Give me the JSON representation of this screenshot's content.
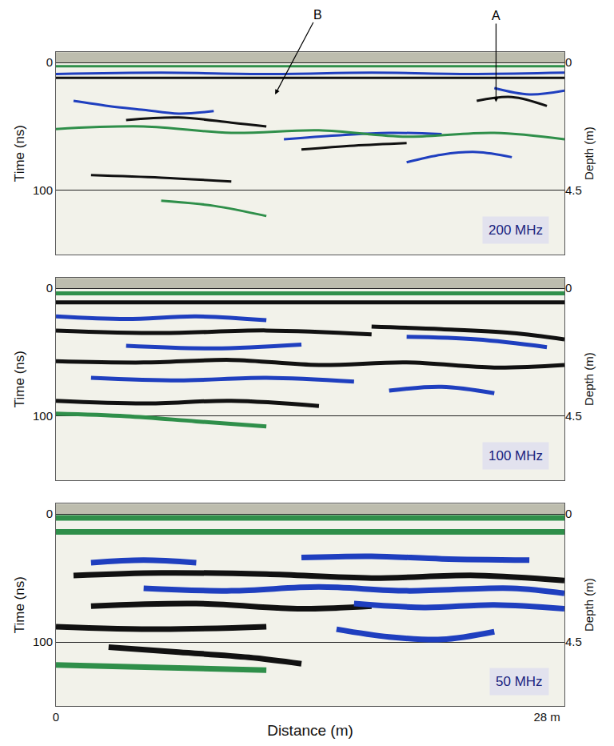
{
  "chart_data": [
    {
      "type": "line",
      "y_label": "Time (ns)",
      "y2_label": "Depth (m)",
      "xlim": [
        0,
        29
      ],
      "xticks": [],
      "ylim": [
        150,
        -8
      ],
      "yticks": [
        0,
        100
      ],
      "y2lim": [
        6.75,
        -0.36
      ],
      "y2ticks": [
        0,
        4.5
      ],
      "grid": true,
      "tick_labels": "y",
      "annotations": [
        {
          "text": "200 MHz"
        },
        {
          "text": "B",
          "x": 12.5,
          "y": 25
        },
        {
          "text": "A",
          "x": 25.1,
          "y": 31
        }
      ],
      "series": [
        {
          "color": "#2f8f4a",
          "x": [
            0,
            29
          ],
          "values": [
            3,
            3
          ]
        },
        {
          "color": "#1f3fbf",
          "x": [
            0,
            6,
            12,
            18,
            24,
            29
          ],
          "values": [
            9,
            8,
            9,
            8,
            9,
            8
          ]
        },
        {
          "color": "#111111",
          "x": [
            0,
            29
          ],
          "values": [
            12,
            12
          ]
        },
        {
          "color": "#1f3fbf",
          "x": [
            1,
            3,
            5,
            7,
            9
          ],
          "values": [
            30,
            34,
            37,
            40,
            38
          ]
        },
        {
          "color": "#111111",
          "x": [
            4,
            7,
            10,
            12
          ],
          "values": [
            45,
            43,
            47,
            50
          ]
        },
        {
          "color": "#1f3fbf",
          "x": [
            13,
            16,
            19,
            22
          ],
          "values": [
            60,
            57,
            55,
            56
          ]
        },
        {
          "color": "#111111",
          "x": [
            14,
            17,
            20
          ],
          "values": [
            68,
            65,
            63
          ]
        },
        {
          "color": "#1f3fbf",
          "x": [
            20,
            22,
            24,
            26
          ],
          "values": [
            78,
            72,
            70,
            74
          ]
        },
        {
          "color": "#111111",
          "x": [
            24,
            26,
            28
          ],
          "values": [
            30,
            27,
            34
          ]
        },
        {
          "color": "#1f3fbf",
          "x": [
            25,
            27,
            29
          ],
          "values": [
            20,
            25,
            22
          ]
        },
        {
          "color": "#2f8f4a",
          "x": [
            0,
            5,
            10,
            15,
            20,
            25,
            29
          ],
          "values": [
            52,
            50,
            55,
            53,
            58,
            55,
            60
          ]
        },
        {
          "color": "#111111",
          "x": [
            2,
            6,
            10
          ],
          "values": [
            88,
            90,
            93
          ]
        },
        {
          "color": "#2f8f4a",
          "x": [
            6,
            9,
            12
          ],
          "values": [
            108,
            112,
            120
          ]
        }
      ]
    },
    {
      "type": "line",
      "y_label": "Time (ns)",
      "y2_label": "Depth (m)",
      "xlim": [
        0,
        29
      ],
      "xticks": [],
      "ylim": [
        150,
        -8
      ],
      "yticks": [
        0,
        100
      ],
      "y2lim": [
        6.75,
        -0.36
      ],
      "y2ticks": [
        0,
        4.5
      ],
      "grid": true,
      "tick_labels": "y",
      "annotations": [
        {
          "text": "100 MHz"
        }
      ],
      "series": [
        {
          "color": "#2f8f4a",
          "x": [
            0,
            29
          ],
          "values": [
            4,
            4
          ]
        },
        {
          "color": "#111111",
          "x": [
            0,
            29
          ],
          "values": [
            11,
            11
          ]
        },
        {
          "color": "#1f3fbf",
          "x": [
            0,
            4,
            8,
            12
          ],
          "values": [
            22,
            24,
            22,
            25
          ]
        },
        {
          "color": "#111111",
          "x": [
            0,
            6,
            12,
            18
          ],
          "values": [
            33,
            35,
            33,
            36
          ]
        },
        {
          "color": "#1f3fbf",
          "x": [
            4,
            9,
            14
          ],
          "values": [
            45,
            47,
            44
          ]
        },
        {
          "color": "#111111",
          "x": [
            18,
            22,
            26,
            29
          ],
          "values": [
            30,
            32,
            35,
            40
          ]
        },
        {
          "color": "#1f3fbf",
          "x": [
            20,
            24,
            28
          ],
          "values": [
            38,
            40,
            46
          ]
        },
        {
          "color": "#111111",
          "x": [
            0,
            5,
            10,
            15,
            20,
            25,
            29
          ],
          "values": [
            57,
            58,
            56,
            60,
            58,
            62,
            60
          ]
        },
        {
          "color": "#1f3fbf",
          "x": [
            2,
            7,
            12,
            17
          ],
          "values": [
            70,
            72,
            70,
            73
          ]
        },
        {
          "color": "#1f3fbf",
          "x": [
            19,
            22,
            25
          ],
          "values": [
            80,
            77,
            82
          ]
        },
        {
          "color": "#111111",
          "x": [
            0,
            5,
            10,
            15
          ],
          "values": [
            88,
            90,
            88,
            92
          ]
        },
        {
          "color": "#2f8f4a",
          "x": [
            0,
            4,
            8,
            12
          ],
          "values": [
            98,
            100,
            104,
            108
          ]
        }
      ]
    },
    {
      "type": "line",
      "x_label": "Distance (m)",
      "y_label": "Time (ns)",
      "y2_label": "Depth (m)",
      "xlim": [
        0,
        29
      ],
      "xticks": [
        0,
        {
          "value": 28,
          "label": "28 m"
        }
      ],
      "ylim": [
        150,
        -8
      ],
      "yticks": [
        0,
        100
      ],
      "y2lim": [
        6.75,
        -0.36
      ],
      "y2ticks": [
        0,
        4.5
      ],
      "grid": true,
      "tick_labels": true,
      "annotations": [
        {
          "text": "50 MHz"
        }
      ],
      "series": [
        {
          "color": "#2f8f4a",
          "x": [
            0,
            29
          ],
          "values": [
            3,
            3
          ]
        },
        {
          "color": "#2f8f4a",
          "x": [
            0,
            29
          ],
          "values": [
            14,
            14
          ]
        },
        {
          "color": "#1f3fbf",
          "x": [
            2,
            5,
            8
          ],
          "values": [
            38,
            36,
            38
          ]
        },
        {
          "color": "#1f3fbf",
          "x": [
            14,
            18,
            22,
            27
          ],
          "values": [
            34,
            33,
            35,
            36
          ]
        },
        {
          "color": "#111111",
          "x": [
            1,
            6,
            12,
            18,
            24,
            29
          ],
          "values": [
            48,
            46,
            47,
            50,
            48,
            52
          ]
        },
        {
          "color": "#1f3fbf",
          "x": [
            5,
            10,
            15,
            20,
            26,
            29
          ],
          "values": [
            58,
            60,
            57,
            60,
            58,
            62
          ]
        },
        {
          "color": "#111111",
          "x": [
            2,
            8,
            14,
            18
          ],
          "values": [
            72,
            70,
            74,
            72
          ]
        },
        {
          "color": "#1f3fbf",
          "x": [
            17,
            21,
            25,
            29
          ],
          "values": [
            70,
            73,
            71,
            74
          ]
        },
        {
          "color": "#111111",
          "x": [
            0,
            6,
            12
          ],
          "values": [
            88,
            90,
            88
          ]
        },
        {
          "color": "#1f3fbf",
          "x": [
            16,
            19,
            22,
            25
          ],
          "values": [
            90,
            96,
            98,
            92
          ]
        },
        {
          "color": "#111111",
          "x": [
            3,
            7,
            11,
            14
          ],
          "values": [
            104,
            108,
            112,
            117
          ]
        },
        {
          "color": "#2f8f4a",
          "x": [
            0,
            6,
            12
          ],
          "values": [
            118,
            120,
            122
          ]
        }
      ]
    }
  ]
}
